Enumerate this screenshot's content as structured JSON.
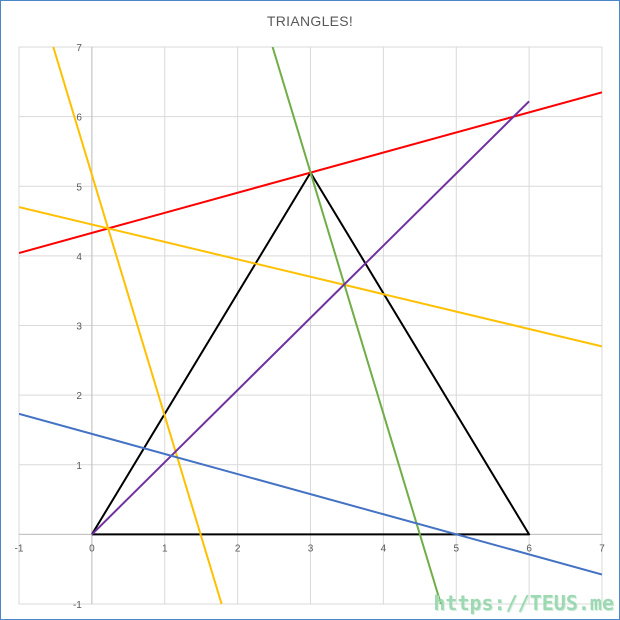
{
  "chart_data": {
    "type": "scatter",
    "title": "TRIANGLES!",
    "xlabel": "",
    "ylabel": "",
    "xlim": [
      -1,
      7
    ],
    "ylim": [
      -1,
      7
    ],
    "x_ticks": [
      "-1",
      "0",
      "1",
      "2",
      "3",
      "4",
      "5",
      "6",
      "7"
    ],
    "y_ticks": [
      "-1",
      "0",
      "1",
      "2",
      "3",
      "4",
      "5",
      "6",
      "7"
    ],
    "grid": true,
    "legend": "none",
    "series": [
      {
        "color": "#000000",
        "points": [
          [
            0,
            0
          ],
          [
            3,
            5.196
          ],
          [
            6,
            0
          ],
          [
            0,
            0
          ]
        ]
      },
      {
        "color": "#ff0000",
        "points": [
          [
            -1,
            4.041
          ],
          [
            7,
            6.35
          ]
        ]
      },
      {
        "color": "#ffc000",
        "points": [
          [
            -1,
            4.7
          ],
          [
            7,
            2.7
          ]
        ]
      },
      {
        "color": "#ffc000",
        "points": [
          [
            -0.53,
            7
          ],
          [
            1.78,
            -1
          ]
        ]
      },
      {
        "color": "#70ad47",
        "points": [
          [
            2.48,
            7
          ],
          [
            4.79,
            -1
          ]
        ]
      },
      {
        "color": "#7030a0",
        "points": [
          [
            0,
            0
          ],
          [
            6.0,
            6.22
          ]
        ]
      },
      {
        "color": "#4472c4",
        "points": [
          [
            -1,
            1.732
          ],
          [
            7,
            -0.577
          ]
        ]
      }
    ]
  },
  "watermark": "https://TEUS.me"
}
